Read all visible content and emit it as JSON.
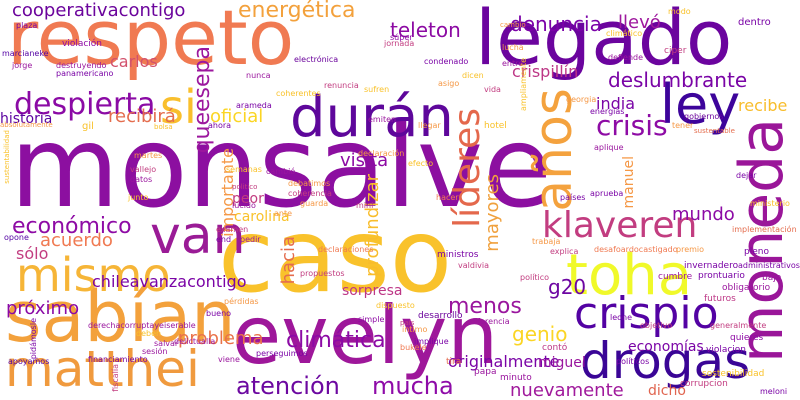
{
  "word_cloud": {
    "words": [
      {
        "text": "monsalve",
        "color": "#8c0fa0"
      },
      {
        "text": "caso",
        "color": "#f9c22b"
      },
      {
        "text": "respeto",
        "color": "#f07a52"
      },
      {
        "text": "legado",
        "color": "#6b049e"
      },
      {
        "text": "evelyn",
        "color": "#9e179a"
      },
      {
        "text": "moneda",
        "color": "#9a1699"
      },
      {
        "text": "sabían",
        "color": "#f3a13c"
      },
      {
        "text": "toha",
        "color": "#f0f92a"
      },
      {
        "text": "mismo",
        "color": "#f6b537"
      },
      {
        "text": "matthei",
        "color": "#f09a3e"
      },
      {
        "text": "van",
        "color": "#9a1b96"
      },
      {
        "text": "durán",
        "color": "#5e079b"
      },
      {
        "text": "crispio",
        "color": "#5302a3"
      },
      {
        "text": "drogas",
        "color": "#3a0596"
      },
      {
        "text": "ley",
        "color": "#3d049b"
      },
      {
        "text": "años",
        "color": "#f4a23e"
      },
      {
        "text": "klaveren",
        "color": "#c23d80"
      },
      {
        "text": "despierta",
        "color": "#8b0aa5"
      },
      {
        "text": "si",
        "color": "#f9bf2d"
      },
      {
        "text": "líderes",
        "color": "#e4684c"
      },
      {
        "text": "atención",
        "color": "#6c08a0"
      },
      {
        "text": "mucha",
        "color": "#8e0ba8"
      },
      {
        "text": "crisis",
        "color": "#8e0ba5"
      },
      {
        "text": "queesepa",
        "color": "#9c179e"
      },
      {
        "text": "cooperativacontigo",
        "color": "#6b049c"
      },
      {
        "text": "energética",
        "color": "#f3a13c"
      },
      {
        "text": "teleton",
        "color": "#8c0aa3"
      },
      {
        "text": "denuncia",
        "color": "#7b02a8"
      },
      {
        "text": "llevó",
        "color": "#9e189e"
      },
      {
        "text": "deslumbrante",
        "color": "#7a04a6"
      },
      {
        "text": "económico",
        "color": "#8e0ba5"
      },
      {
        "text": "climática",
        "color": "#8c0aa5"
      },
      {
        "text": "problema",
        "color": "#e9724a"
      },
      {
        "text": "nuevamente",
        "color": "#a01a9c"
      },
      {
        "text": "próximo",
        "color": "#8a09a6"
      },
      {
        "text": "chileavanzacontigo",
        "color": "#7a04a6"
      },
      {
        "text": "g20",
        "color": "#6d06a2"
      },
      {
        "text": "menos",
        "color": "#9a169e"
      },
      {
        "text": "genio",
        "color": "#fbd524"
      },
      {
        "text": "mayores",
        "color": "#f0a13e"
      },
      {
        "text": "profundizar",
        "color": "#f8bd2c"
      },
      {
        "text": "mundo",
        "color": "#8c0aa5"
      },
      {
        "text": "visita",
        "color": "#8e0ba5"
      },
      {
        "text": "acuerdo",
        "color": "#f07a52"
      },
      {
        "text": "india",
        "color": "#7a04a6"
      },
      {
        "text": "recibirá",
        "color": "#e46d4e"
      },
      {
        "text": "oficial",
        "color": "#fbd524"
      },
      {
        "text": "carlos",
        "color": "#d2516c"
      },
      {
        "text": "historia",
        "color": "#5a029f"
      },
      {
        "text": "importante",
        "color": "#f59846"
      },
      {
        "text": "hacia",
        "color": "#e46d4e"
      },
      {
        "text": "recibe",
        "color": "#f8bd2c"
      },
      {
        "text": "originalmente",
        "color": "#7a04a6"
      },
      {
        "text": "sorpresa",
        "color": "#bd3786"
      },
      {
        "text": "economías",
        "color": "#7a04a6"
      },
      {
        "text": "miguel",
        "color": "#9a169e"
      },
      {
        "text": "sólo",
        "color": "#c23d80"
      },
      {
        "text": "manuel",
        "color": "#f59846"
      },
      {
        "text": "dicho",
        "color": "#e0644f"
      },
      {
        "text": "carolina",
        "color": "#f9c22b"
      },
      {
        "text": "peor",
        "color": "#c23d80"
      },
      {
        "text": "crispillín",
        "color": "#bd3786"
      },
      {
        "text": "ministros",
        "color": "#7a04a6"
      },
      {
        "text": "ciper",
        "color": "#c23d80"
      },
      {
        "text": "gobiernos",
        "color": "#6b049c"
      },
      {
        "text": "violación",
        "color": "#8e0ba5"
      },
      {
        "text": "jornada",
        "color": "#c23d80"
      },
      {
        "text": "cambio",
        "color": "#f59846"
      },
      {
        "text": "dentro",
        "color": "#7a04a6"
      },
      {
        "text": "politico",
        "color": "#c23d80"
      },
      {
        "text": "panamericano",
        "color": "#7a04a6"
      },
      {
        "text": "electrónica",
        "color": "#6b049c"
      },
      {
        "text": "jorge",
        "color": "#9a169e"
      },
      {
        "text": "marcianeke",
        "color": "#5302a3"
      },
      {
        "text": "plaza",
        "color": "#7a04a6"
      },
      {
        "text": "absolutamente",
        "color": "#f59846"
      },
      {
        "text": "sustentabilidad",
        "color": "#f9c22b"
      },
      {
        "text": "sustentable",
        "color": "#e46d4e"
      },
      {
        "text": "gil",
        "color": "#f9c22b"
      },
      {
        "text": "desafoardocastigado",
        "color": "#f07a52"
      },
      {
        "text": "invernadero",
        "color": "#7a04a6"
      },
      {
        "text": "cumbre",
        "color": "#9a169e"
      },
      {
        "text": "prontuario",
        "color": "#7a04a6"
      },
      {
        "text": "obligatorio",
        "color": "#9a169e"
      },
      {
        "text": "pleno",
        "color": "#7a04a6"
      },
      {
        "text": "futuros",
        "color": "#bd3786"
      },
      {
        "text": "implementación",
        "color": "#e46d4e"
      },
      {
        "text": "ministerio",
        "color": "#f9c22b"
      },
      {
        "text": "administrativos",
        "color": "#7a04a6"
      },
      {
        "text": "bajo",
        "color": "#9a169e"
      },
      {
        "text": "generalmente",
        "color": "#c23d80"
      },
      {
        "text": "sostenibilidad",
        "color": "#f9c22b"
      },
      {
        "text": "violacion",
        "color": "#7a04a6"
      },
      {
        "text": "quieres",
        "color": "#8e0ba5"
      },
      {
        "text": "corrupcion",
        "color": "#c23d80"
      },
      {
        "text": "meloni",
        "color": "#7a04a6"
      },
      {
        "text": "contó",
        "color": "#bd3786"
      },
      {
        "text": "derechacorruptayeiserable",
        "color": "#9a169e"
      },
      {
        "text": "financiamiento",
        "color": "#7a04a6"
      },
      {
        "text": "apoyamos",
        "color": "#5302a3"
      },
      {
        "text": "perseguimos",
        "color": "#7a04a6"
      },
      {
        "text": "viene",
        "color": "#9a169e"
      },
      {
        "text": "desarrollo",
        "color": "#6b049c"
      },
      {
        "text": "simple",
        "color": "#8e0ba5"
      },
      {
        "text": "país",
        "color": "#c23d80"
      },
      {
        "text": "papa",
        "color": "#9a169e"
      },
      {
        "text": "tira",
        "color": "#e46d4e"
      },
      {
        "text": "minuto",
        "color": "#9a169e"
      },
      {
        "text": "bueno",
        "color": "#7a04a6"
      },
      {
        "text": "pérdidas",
        "color": "#f59846"
      },
      {
        "text": "propuestos",
        "color": "#c23d80"
      },
      {
        "text": "declaraciones",
        "color": "#f07a52"
      },
      {
        "text": "valdivia",
        "color": "#c23d80"
      },
      {
        "text": "ahora",
        "color": "#7a04a6"
      },
      {
        "text": "emiten",
        "color": "#9a169e"
      },
      {
        "text": "hotel",
        "color": "#f9c22b"
      },
      {
        "text": "llegar",
        "color": "#f59846"
      },
      {
        "text": "semanas",
        "color": "#f9c22b"
      },
      {
        "text": "datos",
        "color": "#9a169e"
      },
      {
        "text": "vallejo",
        "color": "#c23d80"
      },
      {
        "text": "martes",
        "color": "#f59846"
      },
      {
        "text": "hacer",
        "color": "#f07a52"
      },
      {
        "text": "explica",
        "color": "#c23d80"
      },
      {
        "text": "aprueba",
        "color": "#7a04a6"
      },
      {
        "text": "trabaja",
        "color": "#f59846"
      },
      {
        "text": "países",
        "color": "#7a04a6"
      },
      {
        "text": "nunca",
        "color": "#9a169e"
      },
      {
        "text": "arameda",
        "color": "#7a04a6"
      },
      {
        "text": "coherentes",
        "color": "#f9c22b"
      },
      {
        "text": "cambió",
        "color": "#9a169e"
      },
      {
        "text": "coherencia",
        "color": "#c23d80"
      },
      {
        "text": "debatimos",
        "color": "#f59846"
      },
      {
        "text": "declaración",
        "color": "#f59846"
      },
      {
        "text": "efecto",
        "color": "#f9c22b"
      },
      {
        "text": "diferencia",
        "color": "#9a169e"
      },
      {
        "text": "implique",
        "color": "#7a04a6"
      },
      {
        "text": "íntimo",
        "color": "#f59846"
      },
      {
        "text": "bukele",
        "color": "#f07a52"
      },
      {
        "text": "leone",
        "color": "#7a04a6"
      },
      {
        "text": "objetivo",
        "color": "#c23d80"
      },
      {
        "text": "políticos",
        "color": "#7a04a6"
      },
      {
        "text": "premio",
        "color": "#f59846"
      },
      {
        "text": "salvar",
        "color": "#9a169e"
      },
      {
        "text": "deben",
        "color": "#f9c22b"
      },
      {
        "text": "sesión",
        "color": "#9a169e"
      },
      {
        "text": "delictualla",
        "color": "#9a169e"
      },
      {
        "text": "fiscalía",
        "color": "#c23d80"
      },
      {
        "text": "pidámosle",
        "color": "#7a04a6"
      },
      {
        "text": "opone",
        "color": "#5302a3"
      },
      {
        "text": "junto",
        "color": "#f9c22b"
      },
      {
        "text": "lúcido",
        "color": "#9a169e"
      },
      {
        "text": "examen",
        "color": "#c23d80"
      },
      {
        "text": "end",
        "color": "#7a04a6"
      },
      {
        "text": "pedir",
        "color": "#9a169e"
      },
      {
        "text": "súper",
        "color": "#8e0ba5"
      },
      {
        "text": "destruyendo",
        "color": "#9a169e"
      },
      {
        "text": "condenado",
        "color": "#7a04a6"
      },
      {
        "text": "vida",
        "color": "#c23d80"
      },
      {
        "text": "lucha",
        "color": "#f59846"
      },
      {
        "text": "entre",
        "color": "#9a169e"
      },
      {
        "text": "renuncia",
        "color": "#c23d80"
      },
      {
        "text": "sufren",
        "color": "#f9c22b"
      },
      {
        "text": "asigo",
        "color": "#f59846"
      },
      {
        "text": "dicen",
        "color": "#f9c22b"
      },
      {
        "text": "ampliamente",
        "color": "#f9c22b"
      },
      {
        "text": "energías",
        "color": "#7a04a6"
      },
      {
        "text": "georgia",
        "color": "#f59846"
      },
      {
        "text": "aplique",
        "color": "#9a169e"
      },
      {
        "text": "dejar",
        "color": "#7a04a6"
      },
      {
        "text": "tener",
        "color": "#f59846"
      },
      {
        "text": "modo",
        "color": "#f9c22b"
      },
      {
        "text": "defiende",
        "color": "#9a169e"
      },
      {
        "text": "climático",
        "color": "#f9c22b"
      },
      {
        "text": "bolsa",
        "color": "#f9c22b"
      },
      {
        "text": "mini",
        "color": "#c23d80"
      },
      {
        "text": "ante",
        "color": "#f59846"
      },
      {
        "text": "guarda",
        "color": "#f59846"
      },
      {
        "text": "dispuesto",
        "color": "#f9c22b"
      },
      {
        "text": "político",
        "color": "#c23d80"
      }
    ]
  }
}
